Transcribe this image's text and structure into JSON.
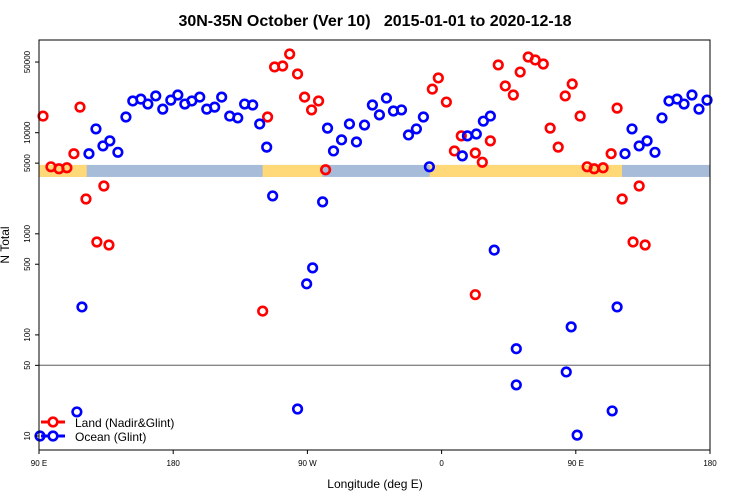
{
  "chart_data": {
    "type": "scatter",
    "title": "30N-35N October (Ver 10)   2015-01-01 to 2020-12-18",
    "xlabel": "Longitude (deg E)",
    "ylabel": "N Total",
    "x_units_note": "unwrapped longitude, 90E..180..270(=90W)..360(=0)..450(=90E)..540(=180)",
    "xlim": [
      90,
      540
    ],
    "yscale": "log",
    "ylim_approx": [
      7,
      75000
    ],
    "x_ticks": [
      {
        "value": 90,
        "label": "90 E"
      },
      {
        "value": 180,
        "label": "180"
      },
      {
        "value": 270,
        "label": "90 W"
      },
      {
        "value": 360,
        "label": "0"
      },
      {
        "value": 450,
        "label": "90 E"
      },
      {
        "value": 540,
        "label": "180"
      }
    ],
    "y_ticks": [
      {
        "value": 10,
        "label": "10"
      },
      {
        "value": 50,
        "label": "50"
      },
      {
        "value": 100,
        "label": "100"
      },
      {
        "value": 500,
        "label": "500"
      },
      {
        "value": 1000,
        "label": "1000"
      },
      {
        "value": 5000,
        "label": "5000"
      },
      {
        "value": 10000,
        "label": "10000"
      },
      {
        "value": 50000,
        "label": "50000"
      }
    ],
    "reference_line": 50,
    "land_ocean_band": {
      "value_range": [
        3650,
        4800
      ],
      "land_color": "#ffd878",
      "ocean_color": "#a7bcd9",
      "land_lon_ranges": [
        [
          90,
          122
        ],
        [
          240,
          280
        ],
        [
          352,
          481
        ]
      ]
    },
    "legend_position": "bottom-left",
    "series": [
      {
        "name": "Land (Nadir&Glint)",
        "color": "#ff0000",
        "points": [
          [
            92.7,
            14600
          ],
          [
            98.0,
            4600
          ],
          [
            103.4,
            4400
          ],
          [
            108.7,
            4500
          ],
          [
            113.4,
            6200
          ],
          [
            117.5,
            17900
          ],
          [
            121.5,
            2210
          ],
          [
            128.8,
            830
          ],
          [
            133.5,
            2970
          ],
          [
            136.9,
            775
          ],
          [
            240.0,
            172
          ],
          [
            243.3,
            14300
          ],
          [
            248.0,
            44700
          ],
          [
            253.4,
            45700
          ],
          [
            258.1,
            60000
          ],
          [
            263.4,
            38100
          ],
          [
            268.1,
            22500
          ],
          [
            272.8,
            16800
          ],
          [
            277.5,
            20600
          ],
          [
            282.2,
            4300
          ],
          [
            353.8,
            27000
          ],
          [
            357.8,
            34800
          ],
          [
            363.2,
            20100
          ],
          [
            368.6,
            6600
          ],
          [
            373.2,
            9300
          ],
          [
            382.6,
            6300
          ],
          [
            382.6,
            250
          ],
          [
            387.3,
            5100
          ],
          [
            392.7,
            8300
          ],
          [
            398.0,
            46800
          ],
          [
            402.7,
            29000
          ],
          [
            408.1,
            23600
          ],
          [
            412.7,
            39800
          ],
          [
            418.1,
            56100
          ],
          [
            422.8,
            52400
          ],
          [
            428.2,
            47800
          ],
          [
            432.8,
            11100
          ],
          [
            438.2,
            7200
          ],
          [
            442.9,
            23100
          ],
          [
            447.6,
            30300
          ],
          [
            452.9,
            14600
          ],
          [
            457.6,
            4600
          ],
          [
            462.3,
            4400
          ],
          [
            468.3,
            4500
          ],
          [
            473.7,
            6200
          ],
          [
            477.7,
            17500
          ],
          [
            481.1,
            2210
          ],
          [
            488.4,
            830
          ],
          [
            492.5,
            2970
          ],
          [
            496.5,
            775
          ]
        ]
      },
      {
        "name": "Ocean (Glint)",
        "color": "#0000ff",
        "points": [
          [
            90.5,
            10
          ],
          [
            115.4,
            17.3
          ],
          [
            118.8,
            189
          ],
          [
            123.5,
            6200
          ],
          [
            128.2,
            10900
          ],
          [
            132.9,
            7400
          ],
          [
            137.5,
            8300
          ],
          [
            142.9,
            6400
          ],
          [
            148.3,
            14300
          ],
          [
            152.9,
            20600
          ],
          [
            158.3,
            21500
          ],
          [
            163.0,
            19200
          ],
          [
            168.3,
            23100
          ],
          [
            173.0,
            17100
          ],
          [
            178.4,
            21000
          ],
          [
            183.1,
            23600
          ],
          [
            187.8,
            19200
          ],
          [
            192.5,
            20600
          ],
          [
            197.8,
            22500
          ],
          [
            202.5,
            17100
          ],
          [
            207.8,
            17900
          ],
          [
            212.5,
            22500
          ],
          [
            217.9,
            14600
          ],
          [
            223.3,
            14000
          ],
          [
            227.9,
            19200
          ],
          [
            233.3,
            18800
          ],
          [
            238.0,
            12200
          ],
          [
            242.7,
            7200
          ],
          [
            246.7,
            2370
          ],
          [
            263.4,
            18.5
          ],
          [
            269.5,
            320
          ],
          [
            273.5,
            460
          ],
          [
            280.2,
            2070
          ],
          [
            283.5,
            11100
          ],
          [
            287.5,
            6600
          ],
          [
            292.9,
            8500
          ],
          [
            298.2,
            12200
          ],
          [
            302.9,
            8100
          ],
          [
            308.3,
            11900
          ],
          [
            313.6,
            18800
          ],
          [
            318.3,
            15000
          ],
          [
            323.0,
            22000
          ],
          [
            327.7,
            16400
          ],
          [
            333.1,
            16800
          ],
          [
            337.8,
            9500
          ],
          [
            343.1,
            10900
          ],
          [
            347.8,
            14300
          ],
          [
            351.8,
            4600
          ],
          [
            373.9,
            5900
          ],
          [
            377.3,
            9300
          ],
          [
            383.3,
            9700
          ],
          [
            388.0,
            13000
          ],
          [
            392.7,
            14600
          ],
          [
            395.3,
            690
          ],
          [
            410.1,
            73
          ],
          [
            410.1,
            32
          ],
          [
            443.6,
            43
          ],
          [
            446.9,
            120
          ],
          [
            450.9,
            10.2
          ],
          [
            474.4,
            17.7
          ],
          [
            477.7,
            189
          ],
          [
            483.0,
            6200
          ],
          [
            487.7,
            10900
          ],
          [
            492.5,
            7400
          ],
          [
            497.8,
            8300
          ],
          [
            503.1,
            6400
          ],
          [
            507.8,
            14000
          ],
          [
            512.5,
            20600
          ],
          [
            517.9,
            21500
          ],
          [
            522.6,
            19200
          ],
          [
            527.9,
            23600
          ],
          [
            532.6,
            17100
          ],
          [
            538.0,
            21000
          ]
        ]
      }
    ]
  }
}
